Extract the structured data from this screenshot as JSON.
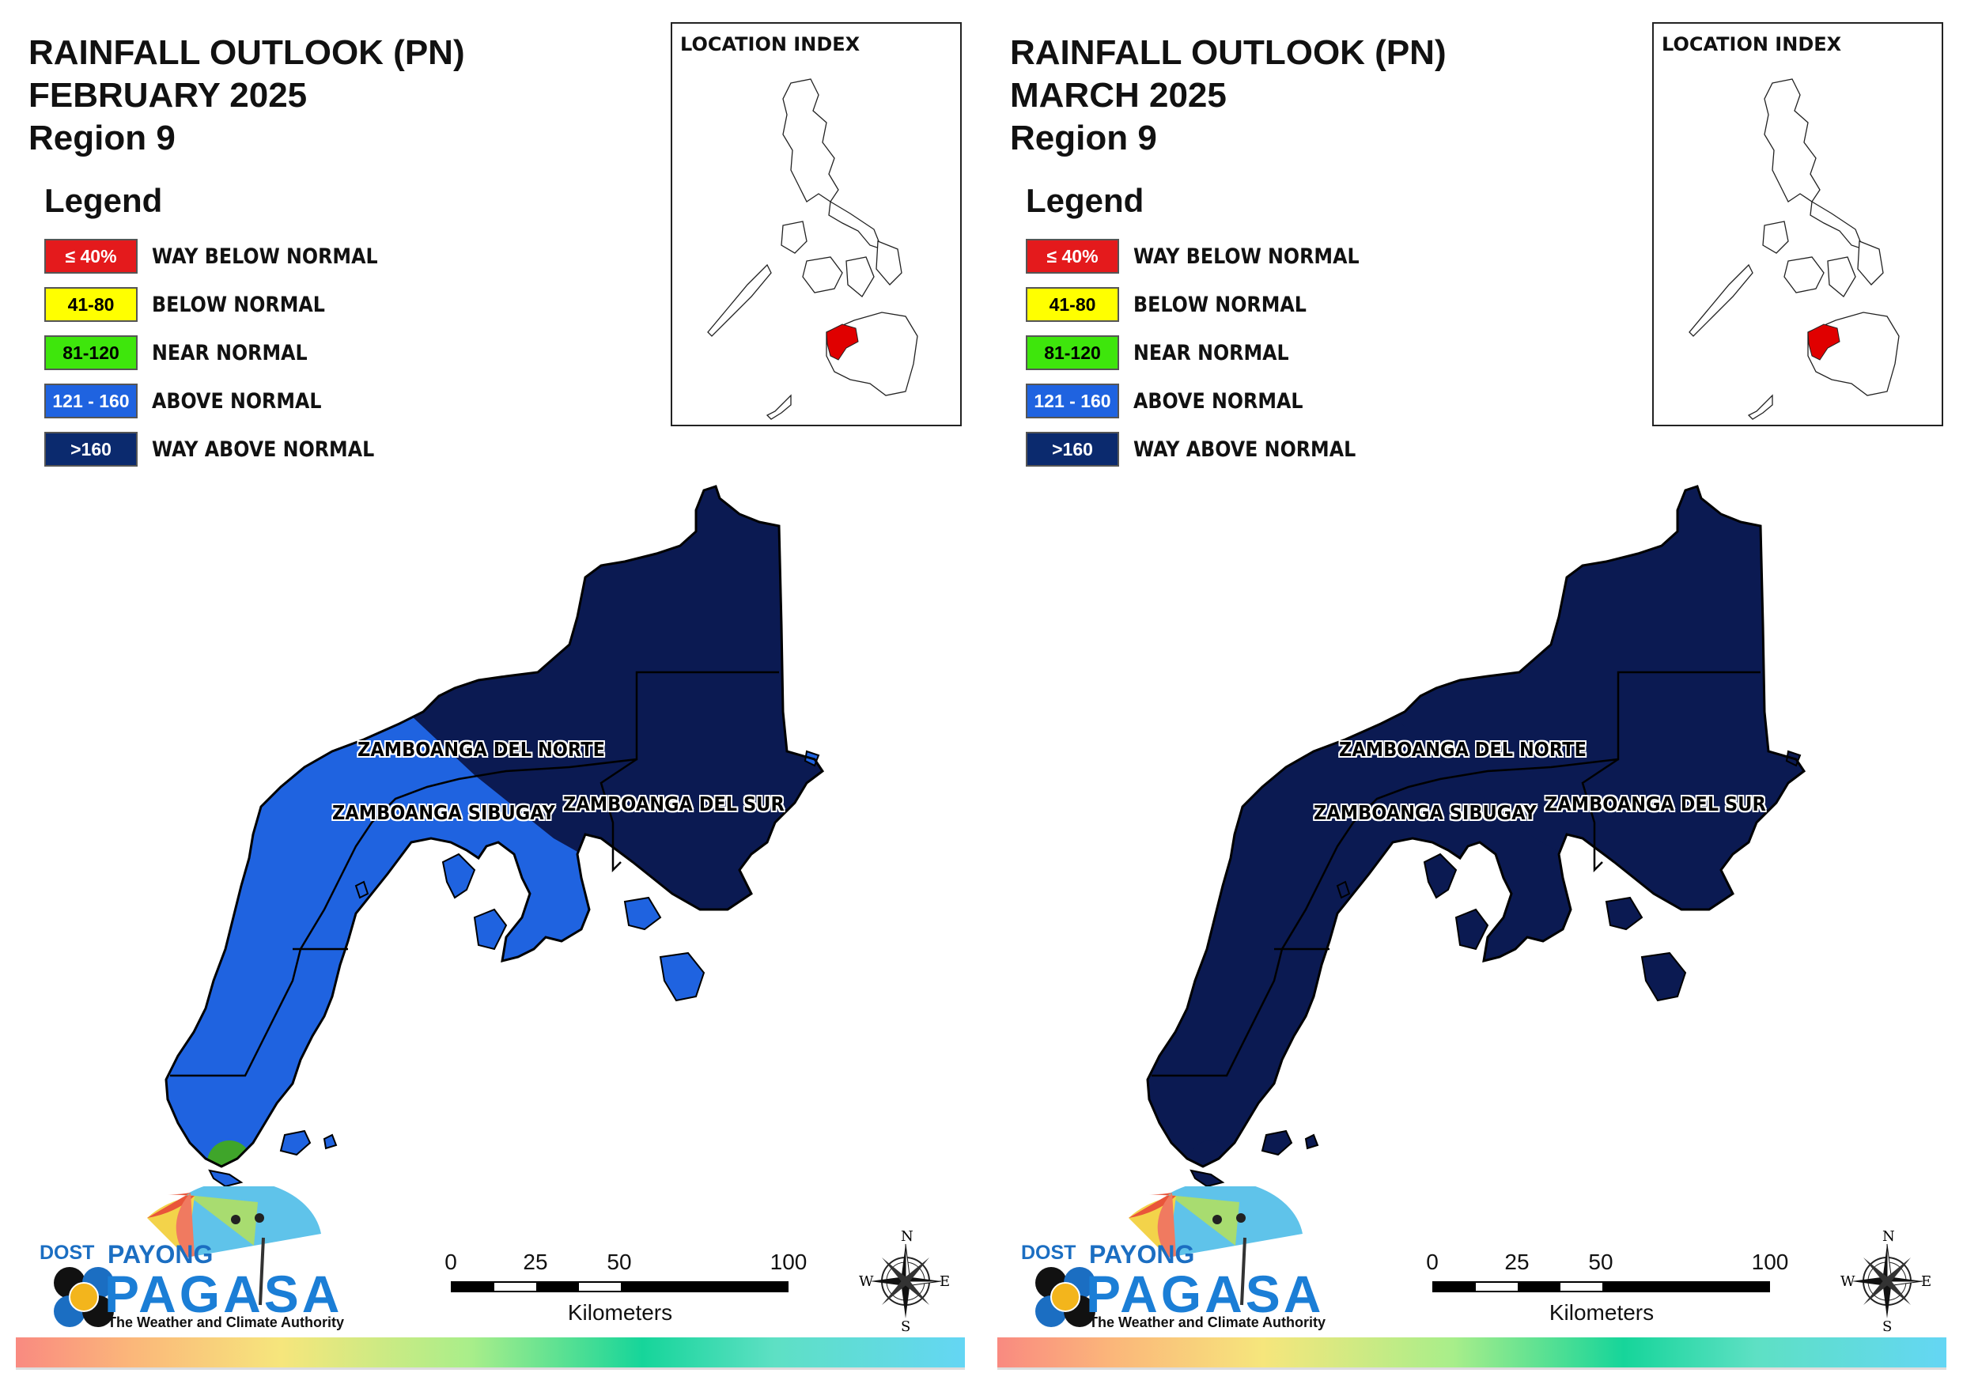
{
  "panels": [
    {
      "title_line1": "RAINFALL OUTLOOK (PN)",
      "title_line2": "FEBRUARY 2025",
      "title_line3": "Region 9",
      "norte_color": "#1f63e0",
      "sibugay_color": "#1f63e0",
      "sur_color": "#0b1a52",
      "tip_color": "#3fa52a"
    },
    {
      "title_line1": "RAINFALL OUTLOOK (PN)",
      "title_line2": "MARCH 2025",
      "title_line3": "Region 9",
      "norte_color": "#0b1a52",
      "sibugay_color": "#0b1a52",
      "sur_color": "#0b1a52",
      "tip_color": "#0b1a52"
    }
  ],
  "legend": {
    "title": "Legend",
    "items": [
      {
        "range": "≤ 40%",
        "label": "WAY BELOW NORMAL",
        "color": "#e41a1c",
        "text_color": "#ffffff"
      },
      {
        "range": "41-80",
        "label": "BELOW NORMAL",
        "color": "#ffff00",
        "text_color": "#000000"
      },
      {
        "range": "81-120",
        "label": "NEAR NORMAL",
        "color": "#3ee60c",
        "text_color": "#000000"
      },
      {
        "range": "121 - 160",
        "label": "ABOVE NORMAL",
        "color": "#1f63e0",
        "text_color": "#ffffff"
      },
      {
        "range": ">160",
        "label": "WAY ABOVE NORMAL",
        "color": "#0b2a6e",
        "text_color": "#ffffff"
      }
    ]
  },
  "inset": {
    "title": "LOCATION INDEX",
    "highlight_color": "#e00000"
  },
  "provinces": {
    "norte": "ZAMBOANGA DEL NORTE",
    "sibugay": "ZAMBOANGA SIBUGAY",
    "sur": "ZAMBOANGA DEL SUR"
  },
  "scale": {
    "ticks": [
      "0",
      "25",
      "50",
      "100"
    ],
    "unit": "Kilometers"
  },
  "compass": {
    "n": "N",
    "s": "S",
    "e": "E",
    "w": "W"
  },
  "logo": {
    "dost": "DOST",
    "payong": "PAYONG",
    "pagasa": "PAGASA",
    "tagline": "The Weather and Climate Authority"
  }
}
